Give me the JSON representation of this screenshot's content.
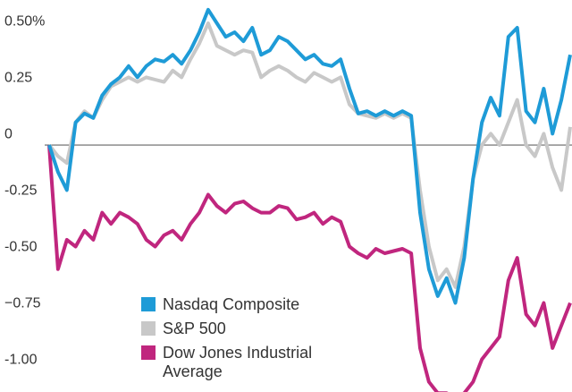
{
  "chart_data": {
    "type": "line",
    "ylim": [
      -1.095,
      0.643
    ],
    "yticks": [
      {
        "value": 0.5,
        "label": "0.50%"
      },
      0.25,
      0,
      -0.25,
      {
        "value": -0.5,
        "label": "-0.50"
      },
      {
        "value": -0.75,
        "label": "−0.75"
      },
      {
        "value": -1,
        "label": "-1.00"
      }
    ],
    "grid": false,
    "series": [
      {
        "name": "Nasdaq Composite",
        "color": "#1e9bd7",
        "values": [
          0,
          -0.12,
          -0.2,
          0.1,
          0.14,
          0.12,
          0.22,
          0.27,
          0.3,
          0.35,
          0.3,
          0.35,
          0.38,
          0.37,
          0.4,
          0.36,
          0.42,
          0.5,
          0.6,
          0.54,
          0.48,
          0.5,
          0.46,
          0.52,
          0.4,
          0.42,
          0.48,
          0.46,
          0.42,
          0.38,
          0.4,
          0.36,
          0.35,
          0.38,
          0.25,
          0.14,
          0.15,
          0.13,
          0.15,
          0.13,
          0.15,
          0.13,
          -0.3,
          -0.55,
          -0.67,
          -0.59,
          -0.7,
          -0.5,
          -0.15,
          0.1,
          0.21,
          0.13,
          0.48,
          0.52,
          0.15,
          0.1,
          0.25,
          0.05,
          0.2,
          0.4
        ]
      },
      {
        "name": "S&P 500",
        "color": "#c8c8c8",
        "values": [
          0,
          -0.05,
          -0.08,
          0.1,
          0.15,
          0.12,
          0.2,
          0.26,
          0.28,
          0.3,
          0.28,
          0.3,
          0.29,
          0.28,
          0.33,
          0.3,
          0.38,
          0.45,
          0.54,
          0.44,
          0.42,
          0.4,
          0.42,
          0.41,
          0.3,
          0.33,
          0.35,
          0.33,
          0.3,
          0.28,
          0.32,
          0.3,
          0.28,
          0.3,
          0.18,
          0.14,
          0.13,
          0.12,
          0.14,
          0.12,
          0.14,
          0.12,
          -0.2,
          -0.45,
          -0.6,
          -0.55,
          -0.63,
          -0.45,
          -0.15,
          0.0,
          0.05,
          0.0,
          0.1,
          0.2,
          0.0,
          -0.05,
          0.05,
          -0.1,
          -0.2,
          0.08
        ]
      },
      {
        "name": "Dow Jones Industrial Average",
        "color": "#c0267e",
        "values": [
          0,
          -0.55,
          -0.42,
          -0.45,
          -0.38,
          -0.42,
          -0.3,
          -0.35,
          -0.3,
          -0.32,
          -0.35,
          -0.42,
          -0.45,
          -0.4,
          -0.38,
          -0.42,
          -0.35,
          -0.3,
          -0.22,
          -0.27,
          -0.3,
          -0.26,
          -0.25,
          -0.28,
          -0.3,
          -0.3,
          -0.27,
          -0.28,
          -0.33,
          -0.32,
          -0.3,
          -0.35,
          -0.32,
          -0.34,
          -0.45,
          -0.48,
          -0.5,
          -0.46,
          -0.48,
          -0.47,
          -0.46,
          -0.48,
          -0.9,
          -1.05,
          -1.1,
          -1.1,
          -1.12,
          -1.1,
          -1.05,
          -0.95,
          -0.9,
          -0.85,
          -0.6,
          -0.5,
          -0.75,
          -0.8,
          -0.7,
          -0.9,
          -0.8,
          -0.7
        ]
      }
    ]
  }
}
